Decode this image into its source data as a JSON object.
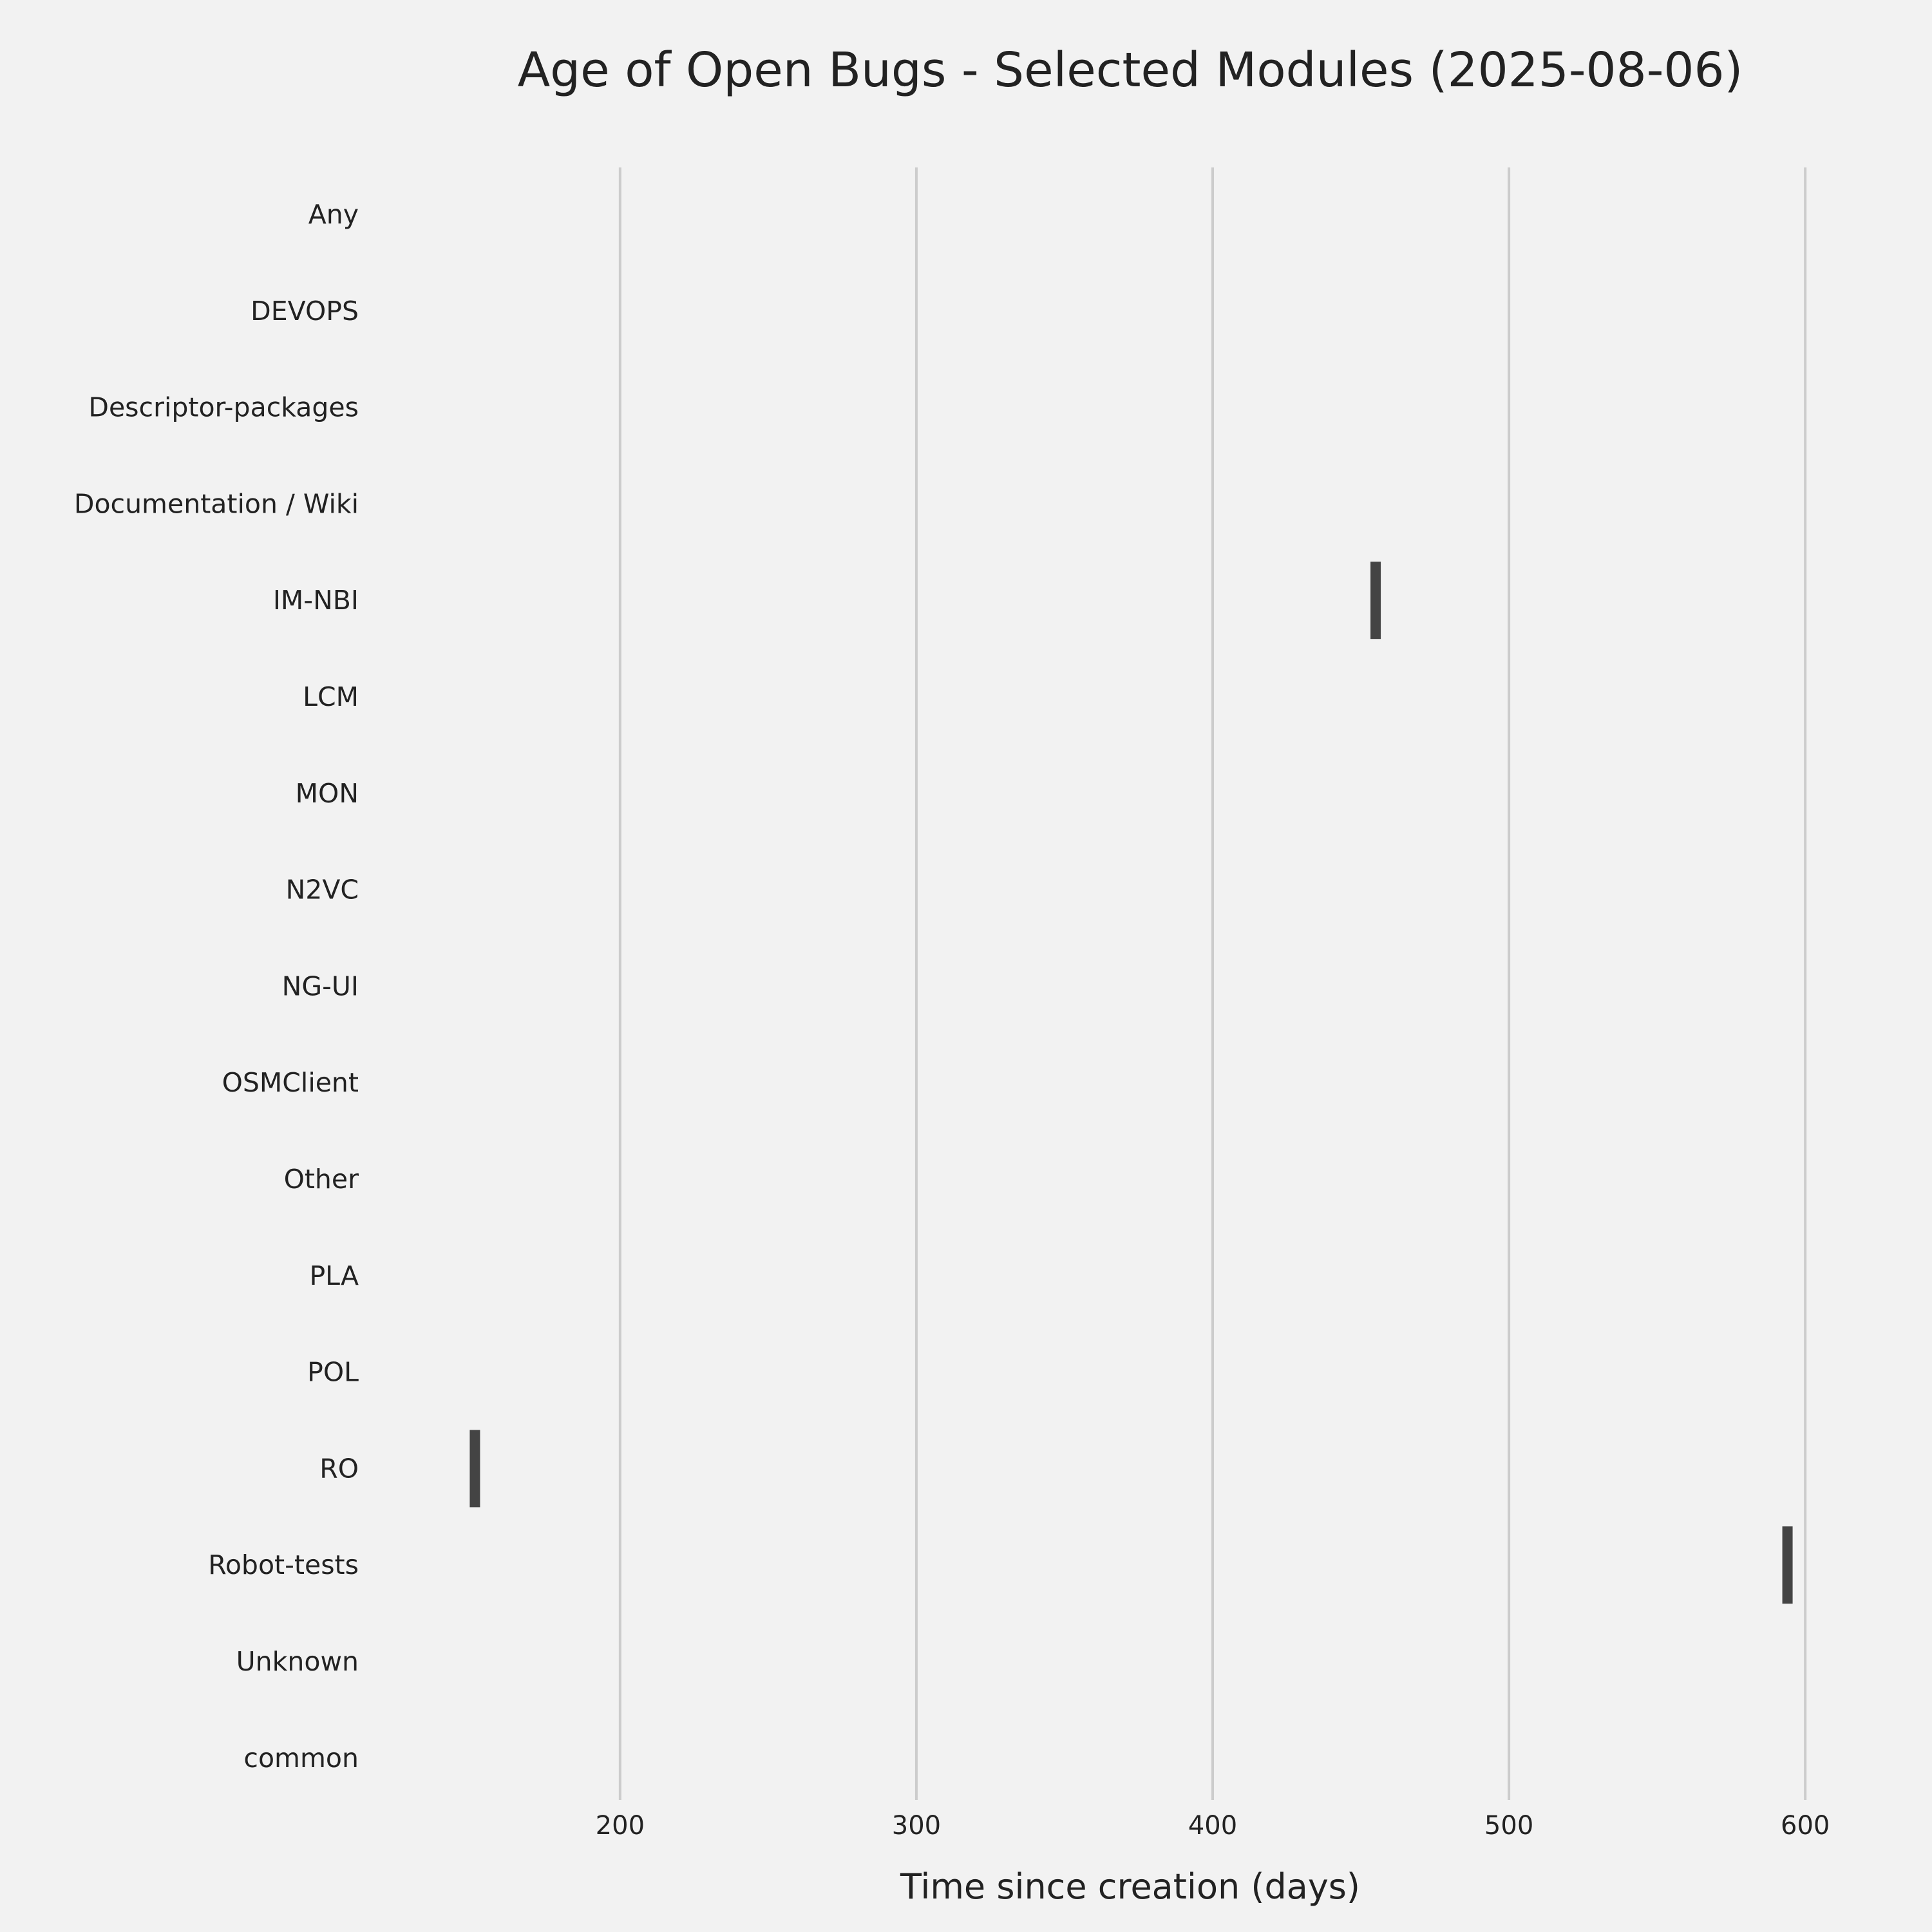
{
  "chart_data": {
    "type": "bar",
    "title": "Age of Open Bugs - Selected Modules (2025-08-06)",
    "xlabel": "Time since creation (days)",
    "ylabel": "",
    "orientation": "horizontal",
    "xlim": [
      127,
      618
    ],
    "xticks": [
      200,
      300,
      400,
      500,
      600
    ],
    "xtick_labels": [
      "200",
      "300",
      "400",
      "500",
      "600"
    ],
    "grid": {
      "x": true,
      "y": false
    },
    "categories": [
      "Any",
      "DEVOPS",
      "Descriptor-packages",
      "Documentation / Wiki",
      "IM-NBI",
      "LCM",
      "MON",
      "N2VC",
      "NG-UI",
      "OSMClient",
      "Other",
      "PLA",
      "POL",
      "RO",
      "Robot-tests",
      "Unknown",
      "common"
    ],
    "marks": [
      {
        "category": "IM-NBI",
        "value": 455
      },
      {
        "category": "RO",
        "value": 151
      },
      {
        "category": "Robot-tests",
        "value": 594
      }
    ],
    "colors": {
      "background": "#f2f2f2",
      "mark": "#444444",
      "grid": "#cccccc",
      "text": "#222222"
    }
  }
}
